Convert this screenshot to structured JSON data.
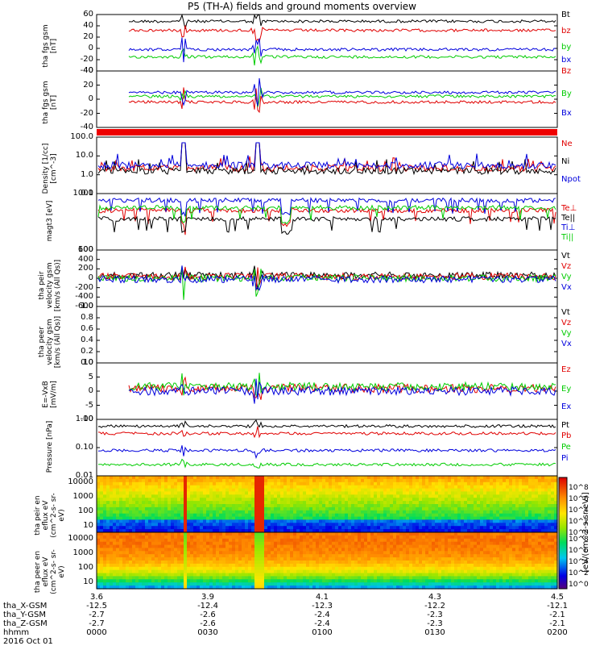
{
  "title": "P5 (TH-A) fields and ground moments overview",
  "colors": {
    "black": "#000000",
    "red": "#e00000",
    "green": "#00cc00",
    "blue": "#0000dd"
  },
  "x_labels": {
    "rows": [
      {
        "name": "tha_X-GSM",
        "values": [
          "-12.5",
          "-12.4",
          "-12.3",
          "-12.2",
          "-12.1"
        ]
      },
      {
        "name": "tha_Y-GSM",
        "values": [
          "-2.7",
          "-2.6",
          "-2.4",
          "-2.3",
          "-2.1"
        ]
      },
      {
        "name": "tha_Z-GSM",
        "values": [
          "-2.7",
          "-2.6",
          "-2.4",
          "-2.3",
          "-2.1"
        ]
      },
      {
        "name": "hhmm",
        "values": [
          "0000",
          "0030",
          "0100",
          "0130",
          "0200"
        ]
      }
    ],
    "top_row": [
      "3.6",
      "3.9",
      "4.1",
      "4.3",
      "4.5"
    ],
    "date": "2016 Oct 01"
  },
  "colorbar": {
    "label": "[eV/(cm^2-s-sr-eV)]",
    "ticks_top": [
      "10^8",
      "10^6",
      "10^4",
      "10^2",
      "10^0"
    ],
    "ticks_bottom": [
      "10^8",
      "10^6",
      "10^4",
      "10^2",
      "10^0"
    ]
  },
  "chart_data": [
    {
      "type": "line",
      "ylabel": "tha\nfgs\ngsm\n[nT]",
      "ylim": [
        -40,
        60
      ],
      "yticks": [
        "60",
        "40",
        "20",
        "0",
        "-20",
        "-40"
      ],
      "series": [
        {
          "name": "Bt",
          "color": "#000000",
          "baseline": 30
        },
        {
          "name": "bz",
          "color": "#e00000",
          "baseline": 25
        },
        {
          "name": "by",
          "color": "#00cc00",
          "baseline": -15
        },
        {
          "name": "bx",
          "color": "#0000dd",
          "baseline": -5
        }
      ]
    },
    {
      "type": "line",
      "ylabel": "tha\nfgs\ngsm\n[nT]",
      "ylim": [
        -50,
        40
      ],
      "yticks": [
        "40",
        "20",
        "0",
        "-20",
        "-40"
      ],
      "series": [
        {
          "name": "Bz",
          "color": "#e00000",
          "baseline": 0
        },
        {
          "name": "By",
          "color": "#00cc00",
          "baseline": 5
        },
        {
          "name": "Bx",
          "color": "#0000dd",
          "baseline": 8
        }
      ]
    },
    {
      "type": "bar-flag",
      "note": "red status bar"
    },
    {
      "type": "line",
      "log": true,
      "ylabel": "Density\n[1/cc]\n[cm^-3]",
      "ylim": [
        0.1,
        100
      ],
      "yticks": [
        "100.0",
        "10.0",
        "1.0",
        "0.1"
      ],
      "series": [
        {
          "name": "Ne",
          "color": "#e00000"
        },
        {
          "name": "Ni",
          "color": "#000000"
        },
        {
          "name": "Npot",
          "color": "#0000dd"
        }
      ]
    },
    {
      "type": "line",
      "log": true,
      "ylabel": "magt3\n[eV]",
      "ylim": [
        40,
        6000
      ],
      "yticks": [
        "1000",
        "100"
      ],
      "series": [
        {
          "name": "Te⊥",
          "color": "#e00000"
        },
        {
          "name": "Te||",
          "color": "#000000"
        },
        {
          "name": "Ti⊥",
          "color": "#0000dd"
        },
        {
          "name": "Ti||",
          "color": "#00cc00"
        }
      ]
    },
    {
      "type": "line",
      "ylabel": "tha\npeir\nvelocity\ngsm\n[km/s (All Qs)]",
      "ylim": [
        -600,
        600
      ],
      "yticks": [
        "600",
        "400",
        "200",
        "0",
        "-200",
        "-400",
        "-600"
      ],
      "series": [
        {
          "name": "Vt",
          "color": "#000000"
        },
        {
          "name": "Vz",
          "color": "#e00000"
        },
        {
          "name": "Vy",
          "color": "#00cc00"
        },
        {
          "name": "Vx",
          "color": "#0000dd"
        }
      ]
    },
    {
      "type": "line",
      "ylabel": "tha\npeer\nvelocity\ngsm\n[km/s (All Qs)]",
      "ylim": [
        -1,
        1
      ],
      "yticks": [
        "1.0",
        "0.8",
        "0.6",
        "0.4",
        "0.2",
        "0.0"
      ],
      "series": [
        {
          "name": "Vt",
          "color": "#000000"
        },
        {
          "name": "Vz",
          "color": "#e00000"
        },
        {
          "name": "Vy",
          "color": "#00cc00"
        },
        {
          "name": "Vx",
          "color": "#0000dd"
        }
      ]
    },
    {
      "type": "line",
      "ylabel": "E=-VxB\n[mV/m]",
      "ylim": [
        -10,
        10
      ],
      "yticks": [
        "10",
        "5",
        "0",
        "-5",
        "-10"
      ],
      "series": [
        {
          "name": "Ez",
          "color": "#e00000"
        },
        {
          "name": "Ey",
          "color": "#00cc00"
        },
        {
          "name": "Ex",
          "color": "#0000dd"
        }
      ]
    },
    {
      "type": "line",
      "log": true,
      "ylabel": "Pressure\n[nPa]",
      "ylim": [
        0.01,
        1.0
      ],
      "yticks": [
        "1.00",
        "0.10",
        "0.01"
      ],
      "series": [
        {
          "name": "Pt",
          "color": "#000000"
        },
        {
          "name": "Pb",
          "color": "#e00000"
        },
        {
          "name": "Pe",
          "color": "#00cc00"
        },
        {
          "name": "Pi",
          "color": "#0000dd"
        }
      ]
    },
    {
      "type": "heatmap",
      "ylabel": "tha\npeir\nen\neflux\neV\n(cm^2-s-\nsr-eV)",
      "yticks": [
        "10000",
        "1000",
        "100",
        "10"
      ]
    },
    {
      "type": "heatmap",
      "ylabel": "tha\npeer\nen\neflux\neV\n(cm^2-s-\nsr-eV)",
      "yticks": [
        "10000",
        "1000",
        "100",
        "10"
      ]
    }
  ]
}
